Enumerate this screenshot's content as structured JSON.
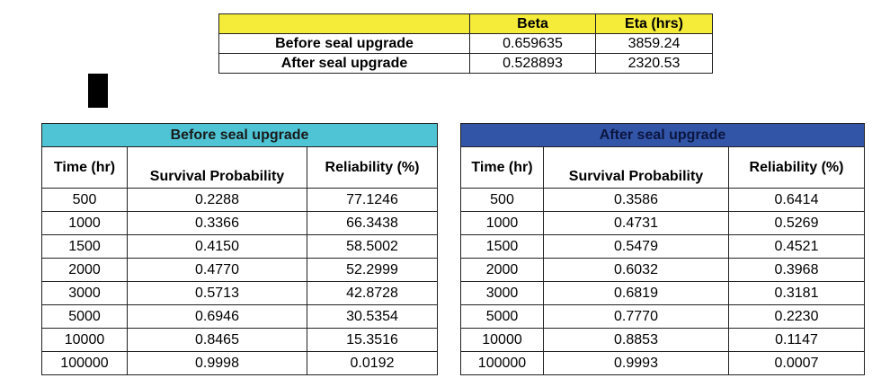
{
  "params": {
    "headers": [
      "",
      "Beta",
      "Eta (hrs)"
    ],
    "rows": [
      {
        "label": "Before seal upgrade",
        "beta": "0.659635",
        "eta": "3859.24"
      },
      {
        "label": "After seal upgrade",
        "beta": "0.528893",
        "eta": "2320.53"
      }
    ]
  },
  "before": {
    "title": "Before seal upgrade",
    "col_time": "Time (hr)",
    "col_survival": "Survival Probability",
    "col_reliability": "Reliability (%)",
    "rows": [
      [
        "500",
        "0.2288",
        "77.1246"
      ],
      [
        "1000",
        "0.3366",
        "66.3438"
      ],
      [
        "1500",
        "0.4150",
        "58.5002"
      ],
      [
        "2000",
        "0.4770",
        "52.2999"
      ],
      [
        "3000",
        "0.5713",
        "42.8728"
      ],
      [
        "5000",
        "0.6946",
        "30.5354"
      ],
      [
        "10000",
        "0.8465",
        "15.3516"
      ],
      [
        "100000",
        "0.9998",
        "0.0192"
      ]
    ]
  },
  "after": {
    "title": "After seal upgrade",
    "col_time": "Time (hr)",
    "col_survival": "Survival Probability",
    "col_reliability": "Reliability (%)",
    "rows": [
      [
        "500",
        "0.3586",
        "0.6414"
      ],
      [
        "1000",
        "0.4731",
        "0.5269"
      ],
      [
        "1500",
        "0.5479",
        "0.4521"
      ],
      [
        "2000",
        "0.6032",
        "0.3968"
      ],
      [
        "3000",
        "0.6819",
        "0.3181"
      ],
      [
        "5000",
        "0.7770",
        "0.2230"
      ],
      [
        "10000",
        "0.8853",
        "0.1147"
      ],
      [
        "100000",
        "0.9993",
        "0.0007"
      ]
    ]
  }
}
